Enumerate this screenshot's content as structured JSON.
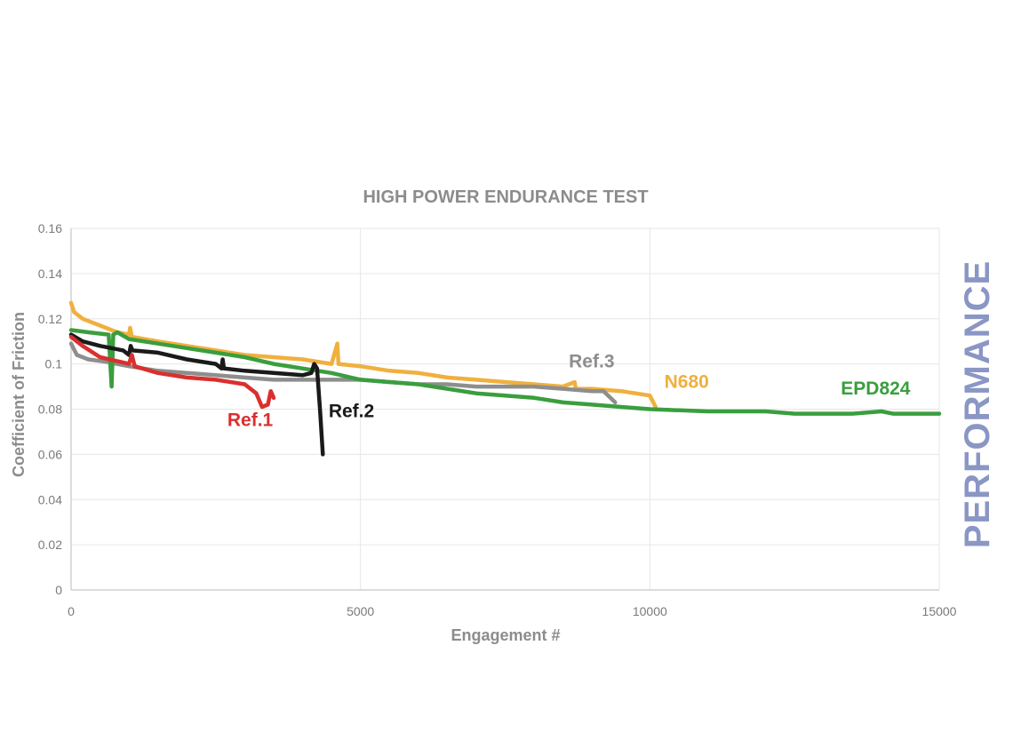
{
  "chart_data": {
    "type": "line",
    "title": "HIGH POWER ENDURANCE TEST",
    "xlabel": "Engagement #",
    "ylabel": "Coefficient of Friction",
    "side_label": "PERFORMANCE",
    "xlim": [
      0,
      15000
    ],
    "ylim": [
      0,
      0.16
    ],
    "x_ticks": [
      "0",
      "5000",
      "10000",
      "15000"
    ],
    "y_ticks": [
      "0",
      "0.02",
      "0.04",
      "0.06",
      "0.08",
      "0.1",
      "0.12",
      "0.14",
      "0.16"
    ],
    "x_tick_values": [
      0,
      5000,
      10000,
      15000
    ],
    "y_tick_values": [
      0,
      0.02,
      0.04,
      0.06,
      0.08,
      0.1,
      0.12,
      0.14,
      0.16
    ],
    "grid": true,
    "series": [
      {
        "name": "N680",
        "color": "#f0b03e",
        "points": [
          [
            0,
            0.127
          ],
          [
            50,
            0.123
          ],
          [
            200,
            0.12
          ],
          [
            500,
            0.117
          ],
          [
            800,
            0.114
          ],
          [
            1000,
            0.113
          ],
          [
            1020,
            0.116
          ],
          [
            1050,
            0.112
          ],
          [
            1500,
            0.11
          ],
          [
            2000,
            0.108
          ],
          [
            2500,
            0.106
          ],
          [
            3000,
            0.104
          ],
          [
            3500,
            0.103
          ],
          [
            4000,
            0.102
          ],
          [
            4500,
            0.1
          ],
          [
            4600,
            0.109
          ],
          [
            4620,
            0.1
          ],
          [
            5000,
            0.099
          ],
          [
            5500,
            0.097
          ],
          [
            6000,
            0.096
          ],
          [
            6500,
            0.094
          ],
          [
            7000,
            0.093
          ],
          [
            7500,
            0.092
          ],
          [
            8000,
            0.091
          ],
          [
            8500,
            0.09
          ],
          [
            8700,
            0.092
          ],
          [
            8720,
            0.089
          ],
          [
            9000,
            0.089
          ],
          [
            9500,
            0.088
          ],
          [
            10000,
            0.086
          ],
          [
            10100,
            0.081
          ]
        ]
      },
      {
        "name": "Ref.3",
        "color": "#8e8e8e",
        "points": [
          [
            0,
            0.109
          ],
          [
            100,
            0.104
          ],
          [
            300,
            0.102
          ],
          [
            600,
            0.101
          ],
          [
            1000,
            0.099
          ],
          [
            1500,
            0.097
          ],
          [
            2000,
            0.096
          ],
          [
            2500,
            0.095
          ],
          [
            3000,
            0.094
          ],
          [
            3500,
            0.093
          ],
          [
            4000,
            0.093
          ],
          [
            4500,
            0.093
          ],
          [
            5000,
            0.093
          ],
          [
            5500,
            0.092
          ],
          [
            6000,
            0.091
          ],
          [
            6500,
            0.091
          ],
          [
            7000,
            0.09
          ],
          [
            7500,
            0.09
          ],
          [
            8000,
            0.09
          ],
          [
            8500,
            0.089
          ],
          [
            9000,
            0.088
          ],
          [
            9200,
            0.088
          ],
          [
            9400,
            0.083
          ]
        ]
      },
      {
        "name": "EPD824",
        "color": "#3a9e3e",
        "points": [
          [
            0,
            0.115
          ],
          [
            300,
            0.114
          ],
          [
            650,
            0.113
          ],
          [
            700,
            0.09
          ],
          [
            730,
            0.113
          ],
          [
            800,
            0.114
          ],
          [
            1000,
            0.111
          ],
          [
            1500,
            0.109
          ],
          [
            2000,
            0.107
          ],
          [
            2500,
            0.105
          ],
          [
            3000,
            0.103
          ],
          [
            3500,
            0.1
          ],
          [
            4000,
            0.098
          ],
          [
            4500,
            0.096
          ],
          [
            5000,
            0.093
          ],
          [
            5500,
            0.092
          ],
          [
            6000,
            0.091
          ],
          [
            6500,
            0.089
          ],
          [
            7000,
            0.087
          ],
          [
            7500,
            0.086
          ],
          [
            8000,
            0.085
          ],
          [
            8500,
            0.083
          ],
          [
            9000,
            0.082
          ],
          [
            9500,
            0.081
          ],
          [
            10000,
            0.08
          ],
          [
            11000,
            0.079
          ],
          [
            12000,
            0.079
          ],
          [
            12500,
            0.078
          ],
          [
            13000,
            0.078
          ],
          [
            13500,
            0.078
          ],
          [
            14000,
            0.079
          ],
          [
            14200,
            0.078
          ],
          [
            14500,
            0.078
          ],
          [
            15000,
            0.078
          ]
        ]
      },
      {
        "name": "Ref.2",
        "color": "#1a1a1a",
        "points": [
          [
            0,
            0.113
          ],
          [
            200,
            0.11
          ],
          [
            500,
            0.108
          ],
          [
            900,
            0.106
          ],
          [
            1000,
            0.104
          ],
          [
            1030,
            0.108
          ],
          [
            1060,
            0.106
          ],
          [
            1500,
            0.105
          ],
          [
            2000,
            0.102
          ],
          [
            2500,
            0.1
          ],
          [
            2600,
            0.098
          ],
          [
            2620,
            0.102
          ],
          [
            2640,
            0.098
          ],
          [
            3000,
            0.097
          ],
          [
            3500,
            0.096
          ],
          [
            4000,
            0.095
          ],
          [
            4150,
            0.096
          ],
          [
            4200,
            0.1
          ],
          [
            4250,
            0.098
          ],
          [
            4300,
            0.08
          ],
          [
            4350,
            0.06
          ]
        ]
      },
      {
        "name": "Ref.1",
        "color": "#d9302f",
        "points": [
          [
            0,
            0.112
          ],
          [
            200,
            0.108
          ],
          [
            500,
            0.103
          ],
          [
            1000,
            0.1
          ],
          [
            1050,
            0.104
          ],
          [
            1100,
            0.099
          ],
          [
            1500,
            0.096
          ],
          [
            2000,
            0.094
          ],
          [
            2500,
            0.093
          ],
          [
            3000,
            0.091
          ],
          [
            3200,
            0.087
          ],
          [
            3300,
            0.081
          ],
          [
            3400,
            0.082
          ],
          [
            3450,
            0.088
          ],
          [
            3500,
            0.085
          ]
        ]
      }
    ],
    "annotations": [
      {
        "text": "Ref.1",
        "x": 2700,
        "y": 0.0725,
        "color": "#d9302f"
      },
      {
        "text": "Ref.2",
        "x": 4450,
        "y": 0.0765,
        "color": "#1a1a1a"
      },
      {
        "text": "Ref.3",
        "x": 8600,
        "y": 0.0985,
        "color": "#8e8e8e"
      },
      {
        "text": "N680",
        "x": 10250,
        "y": 0.0895,
        "color": "#f0b03e"
      },
      {
        "text": "EPD824",
        "x": 13300,
        "y": 0.0865,
        "color": "#3a9e3e"
      }
    ]
  }
}
